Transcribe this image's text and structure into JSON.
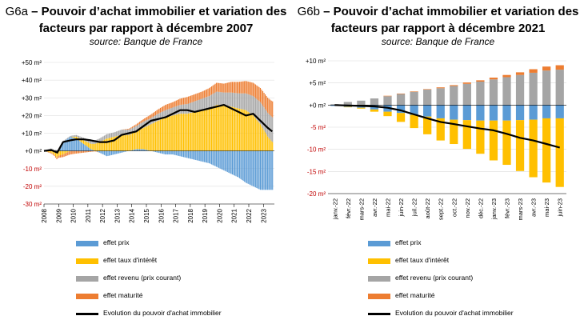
{
  "chart_data": [
    {
      "id": "G6a",
      "type": "bar",
      "code": "G6a",
      "title": "Pouvoir d’achat immobilier et variation des facteurs par rapport à décembre 2007",
      "subtitle": "source: Banque de France",
      "ylim": [
        -30,
        50
      ],
      "yticks": [
        "+50 m²",
        "+40 m²",
        "+30 m²",
        "+20 m²",
        "+10 m²",
        "+0 m²",
        "-10 m²",
        "-20 m²",
        "-30 m²"
      ],
      "ytick_values": [
        50,
        40,
        30,
        20,
        10,
        0,
        -10,
        -20,
        -30
      ],
      "negative_tick_color": "#c00000",
      "xticks": [
        "2008",
        "2009",
        "2010",
        "2011",
        "2012",
        "2013",
        "2014",
        "2015",
        "2016",
        "2017",
        "2018",
        "2019",
        "2020",
        "2021",
        "2022",
        "2023"
      ],
      "x_start": 2008.0,
      "x_end": 2023.75,
      "series": [
        {
          "name": "effet prix",
          "color": "#5b9bd5",
          "points": [
            [
              2008.0,
              0
            ],
            [
              2008.5,
              1
            ],
            [
              2008.9,
              -1
            ],
            [
              2009.3,
              5
            ],
            [
              2009.8,
              8
            ],
            [
              2010.2,
              7
            ],
            [
              2010.7,
              4
            ],
            [
              2011.2,
              1
            ],
            [
              2011.8,
              -1
            ],
            [
              2012.3,
              -3
            ],
            [
              2012.8,
              -2
            ],
            [
              2013.3,
              -1
            ],
            [
              2013.8,
              0
            ],
            [
              2014.3,
              1
            ],
            [
              2014.8,
              1
            ],
            [
              2015.3,
              0
            ],
            [
              2015.8,
              -1
            ],
            [
              2016.3,
              -2
            ],
            [
              2016.8,
              -2
            ],
            [
              2017.3,
              -3
            ],
            [
              2017.8,
              -4
            ],
            [
              2018.3,
              -5
            ],
            [
              2018.8,
              -6
            ],
            [
              2019.3,
              -7
            ],
            [
              2019.8,
              -9
            ],
            [
              2020.3,
              -11
            ],
            [
              2020.8,
              -13
            ],
            [
              2021.3,
              -15
            ],
            [
              2021.8,
              -18
            ],
            [
              2022.3,
              -20
            ],
            [
              2022.8,
              -22
            ],
            [
              2023.3,
              -22
            ],
            [
              2023.6,
              -22
            ]
          ]
        },
        {
          "name": "effet taux d'intérêt",
          "color": "#ffc000",
          "points": [
            [
              2008.0,
              0
            ],
            [
              2008.5,
              -1
            ],
            [
              2008.9,
              -3
            ],
            [
              2009.3,
              -2
            ],
            [
              2009.8,
              0
            ],
            [
              2010.2,
              1
            ],
            [
              2010.7,
              2
            ],
            [
              2011.2,
              3
            ],
            [
              2011.8,
              5
            ],
            [
              2012.3,
              7
            ],
            [
              2012.8,
              8
            ],
            [
              2013.3,
              9
            ],
            [
              2013.8,
              9
            ],
            [
              2014.3,
              10
            ],
            [
              2014.8,
              12
            ],
            [
              2015.3,
              15
            ],
            [
              2015.8,
              17
            ],
            [
              2016.3,
              19
            ],
            [
              2016.8,
              20
            ],
            [
              2017.3,
              21
            ],
            [
              2017.8,
              21
            ],
            [
              2018.3,
              22
            ],
            [
              2018.8,
              23
            ],
            [
              2019.3,
              24
            ],
            [
              2019.8,
              26
            ],
            [
              2020.3,
              26
            ],
            [
              2020.8,
              25
            ],
            [
              2021.3,
              24
            ],
            [
              2021.8,
              23
            ],
            [
              2022.3,
              20
            ],
            [
              2022.8,
              15
            ],
            [
              2023.3,
              8
            ],
            [
              2023.6,
              5
            ]
          ]
        },
        {
          "name": "effet revenu (prix courant)",
          "color": "#a5a5a5",
          "points": [
            [
              2008.0,
              0
            ],
            [
              2008.5,
              0.5
            ],
            [
              2008.9,
              0.5
            ],
            [
              2009.3,
              0.5
            ],
            [
              2009.8,
              0.5
            ],
            [
              2010.2,
              1
            ],
            [
              2010.7,
              1.5
            ],
            [
              2011.2,
              2
            ],
            [
              2011.8,
              2
            ],
            [
              2012.3,
              2.5
            ],
            [
              2012.8,
              2.5
            ],
            [
              2013.3,
              3
            ],
            [
              2013.8,
              3
            ],
            [
              2014.3,
              3
            ],
            [
              2014.8,
              3.5
            ],
            [
              2015.3,
              3.5
            ],
            [
              2015.8,
              4
            ],
            [
              2016.3,
              4
            ],
            [
              2016.8,
              4.5
            ],
            [
              2017.3,
              5
            ],
            [
              2017.8,
              5.5
            ],
            [
              2018.3,
              6
            ],
            [
              2018.8,
              6.5
            ],
            [
              2019.3,
              7
            ],
            [
              2019.8,
              7.5
            ],
            [
              2020.3,
              7
            ],
            [
              2020.8,
              8
            ],
            [
              2021.3,
              8.5
            ],
            [
              2021.8,
              9.5
            ],
            [
              2022.3,
              11
            ],
            [
              2022.8,
              12.5
            ],
            [
              2023.3,
              13.5
            ],
            [
              2023.6,
              14
            ]
          ]
        },
        {
          "name": "effet maturité",
          "color": "#ed7d31",
          "points": [
            [
              2008.0,
              0
            ],
            [
              2008.5,
              -0.5
            ],
            [
              2008.9,
              -1
            ],
            [
              2009.3,
              -1.5
            ],
            [
              2009.8,
              -2
            ],
            [
              2010.2,
              -1.5
            ],
            [
              2010.7,
              -1
            ],
            [
              2011.2,
              -0.5
            ],
            [
              2011.8,
              0
            ],
            [
              2012.3,
              0
            ],
            [
              2012.8,
              0
            ],
            [
              2013.3,
              0
            ],
            [
              2013.8,
              0.5
            ],
            [
              2014.3,
              1
            ],
            [
              2014.8,
              1.5
            ],
            [
              2015.3,
              2
            ],
            [
              2015.8,
              2.5
            ],
            [
              2016.3,
              3
            ],
            [
              2016.8,
              3
            ],
            [
              2017.3,
              3.5
            ],
            [
              2017.8,
              4
            ],
            [
              2018.3,
              4
            ],
            [
              2018.8,
              4
            ],
            [
              2019.3,
              4.5
            ],
            [
              2019.8,
              5
            ],
            [
              2020.3,
              5
            ],
            [
              2020.8,
              6
            ],
            [
              2021.3,
              6.5
            ],
            [
              2021.8,
              7
            ],
            [
              2022.3,
              7.5
            ],
            [
              2022.8,
              8
            ],
            [
              2023.3,
              8.5
            ],
            [
              2023.6,
              9
            ]
          ]
        },
        {
          "name": "Evolution du pouvoir d'achat immobilier",
          "color": "#000000",
          "kind": "line",
          "points": [
            [
              2008.0,
              0
            ],
            [
              2008.5,
              0.5
            ],
            [
              2008.9,
              -1
            ],
            [
              2009.3,
              5
            ],
            [
              2009.8,
              6
            ],
            [
              2010.2,
              6.5
            ],
            [
              2010.7,
              6.5
            ],
            [
              2011.2,
              6
            ],
            [
              2011.8,
              5
            ],
            [
              2012.3,
              5
            ],
            [
              2012.8,
              6
            ],
            [
              2013.3,
              9
            ],
            [
              2013.8,
              10
            ],
            [
              2014.3,
              11
            ],
            [
              2014.8,
              14
            ],
            [
              2015.3,
              17
            ],
            [
              2015.8,
              18
            ],
            [
              2016.3,
              19
            ],
            [
              2016.8,
              21
            ],
            [
              2017.3,
              23
            ],
            [
              2017.8,
              23
            ],
            [
              2018.3,
              22
            ],
            [
              2018.8,
              23
            ],
            [
              2019.3,
              24
            ],
            [
              2019.8,
              25
            ],
            [
              2020.3,
              26
            ],
            [
              2020.8,
              24
            ],
            [
              2021.3,
              22
            ],
            [
              2021.8,
              20
            ],
            [
              2022.3,
              21
            ],
            [
              2022.8,
              17
            ],
            [
              2023.3,
              13
            ],
            [
              2023.6,
              11
            ]
          ]
        }
      ]
    },
    {
      "id": "G6b",
      "type": "bar",
      "code": "G6b",
      "title": "Pouvoir d’achat immobilier et variation des facteurs par rapport à décembre 2021",
      "subtitle": "source: Banque de France",
      "ylim": [
        -20,
        10
      ],
      "yticks": [
        "+10 m²",
        "+5 m²",
        "+0 m²",
        "-5 m²",
        "-10 m²",
        "-15 m²",
        "-20 m²"
      ],
      "ytick_values": [
        10,
        5,
        0,
        -5,
        -10,
        -15,
        -20
      ],
      "negative_tick_color": "#c00000",
      "categories": [
        "janv.-22",
        "févr.-22",
        "mars-22",
        "avr.-22",
        "mai-22",
        "juin-22",
        "juil.-22",
        "août-22",
        "sept.-22",
        "oct.-22",
        "nov.-22",
        "déc.-22",
        "janv.-23",
        "févr.-23",
        "mars-23",
        "avr.-23",
        "mai-23",
        "juin-23"
      ],
      "series": [
        {
          "name": "effet prix",
          "color": "#5b9bd5",
          "values": [
            -0.2,
            -0.4,
            -0.6,
            -1.0,
            -1.5,
            -1.8,
            -2.2,
            -2.6,
            -3.0,
            -3.3,
            -3.4,
            -3.5,
            -3.5,
            -3.5,
            -3.4,
            -3.3,
            -3.0,
            -3.0
          ]
        },
        {
          "name": "effet taux d'intérêt",
          "color": "#ffc000",
          "values": [
            0.0,
            -0.1,
            -0.2,
            -0.5,
            -1.0,
            -2.0,
            -3.0,
            -4.0,
            -5.0,
            -5.5,
            -6.5,
            -7.5,
            -9.0,
            -10.0,
            -11.5,
            -13.0,
            -14.5,
            -15.5
          ]
        },
        {
          "name": "effet revenu (prix courant)",
          "color": "#a5a5a5",
          "values": [
            0.2,
            0.7,
            1.0,
            1.5,
            2.0,
            2.5,
            3.0,
            3.5,
            3.8,
            4.3,
            4.8,
            5.3,
            5.8,
            6.3,
            6.8,
            7.3,
            7.8,
            8.0
          ]
        },
        {
          "name": "effet maturité",
          "color": "#ed7d31",
          "values": [
            0.0,
            0.0,
            0.0,
            0.0,
            0.1,
            0.1,
            0.1,
            0.1,
            0.2,
            0.2,
            0.3,
            0.3,
            0.4,
            0.5,
            0.6,
            0.8,
            0.9,
            1.0
          ]
        },
        {
          "name": "Evolution du pouvoir d'achat immobilier",
          "color": "#000000",
          "kind": "line",
          "values": [
            0.0,
            -0.1,
            -0.2,
            -0.3,
            -0.6,
            -1.2,
            -2.1,
            -3.0,
            -3.8,
            -4.3,
            -4.8,
            -5.3,
            -5.7,
            -6.5,
            -7.4,
            -8.0,
            -8.8,
            -9.6
          ]
        }
      ]
    }
  ]
}
